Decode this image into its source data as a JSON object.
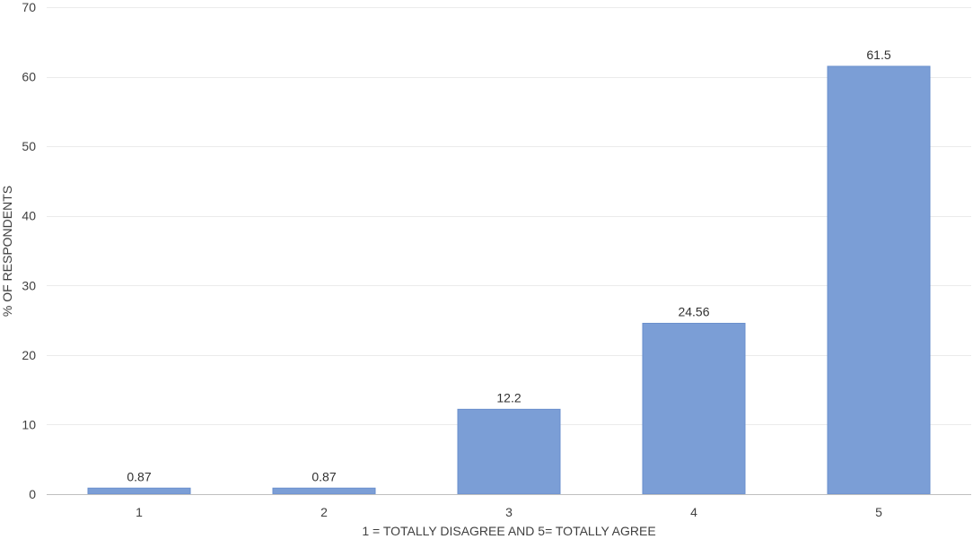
{
  "chart_data": {
    "type": "bar",
    "title": "",
    "xlabel": "1 = TOTALLY DISAGREE AND 5= TOTALLY AGREE",
    "ylabel": "% OF RESPONDENTS",
    "categories": [
      "1",
      "2",
      "3",
      "4",
      "5"
    ],
    "values": [
      0.87,
      0.87,
      12.2,
      24.56,
      61.5
    ],
    "data_labels": [
      "0.87",
      "0.87",
      "12.2",
      "24.56",
      "61.5"
    ],
    "ylim": [
      0,
      70
    ],
    "yticks": [
      0,
      10,
      20,
      30,
      40,
      50,
      60,
      70
    ],
    "ytick_labels": [
      "0",
      "10",
      "20",
      "30",
      "40",
      "50",
      "60",
      "70"
    ],
    "grid": true,
    "legend": "none",
    "colors": {
      "bar": "#7b9ed6",
      "bar_border": "#6a8fcd",
      "gridline": "#ebebeb",
      "axis_line": "#bfbfbf",
      "text": "#404040"
    }
  }
}
